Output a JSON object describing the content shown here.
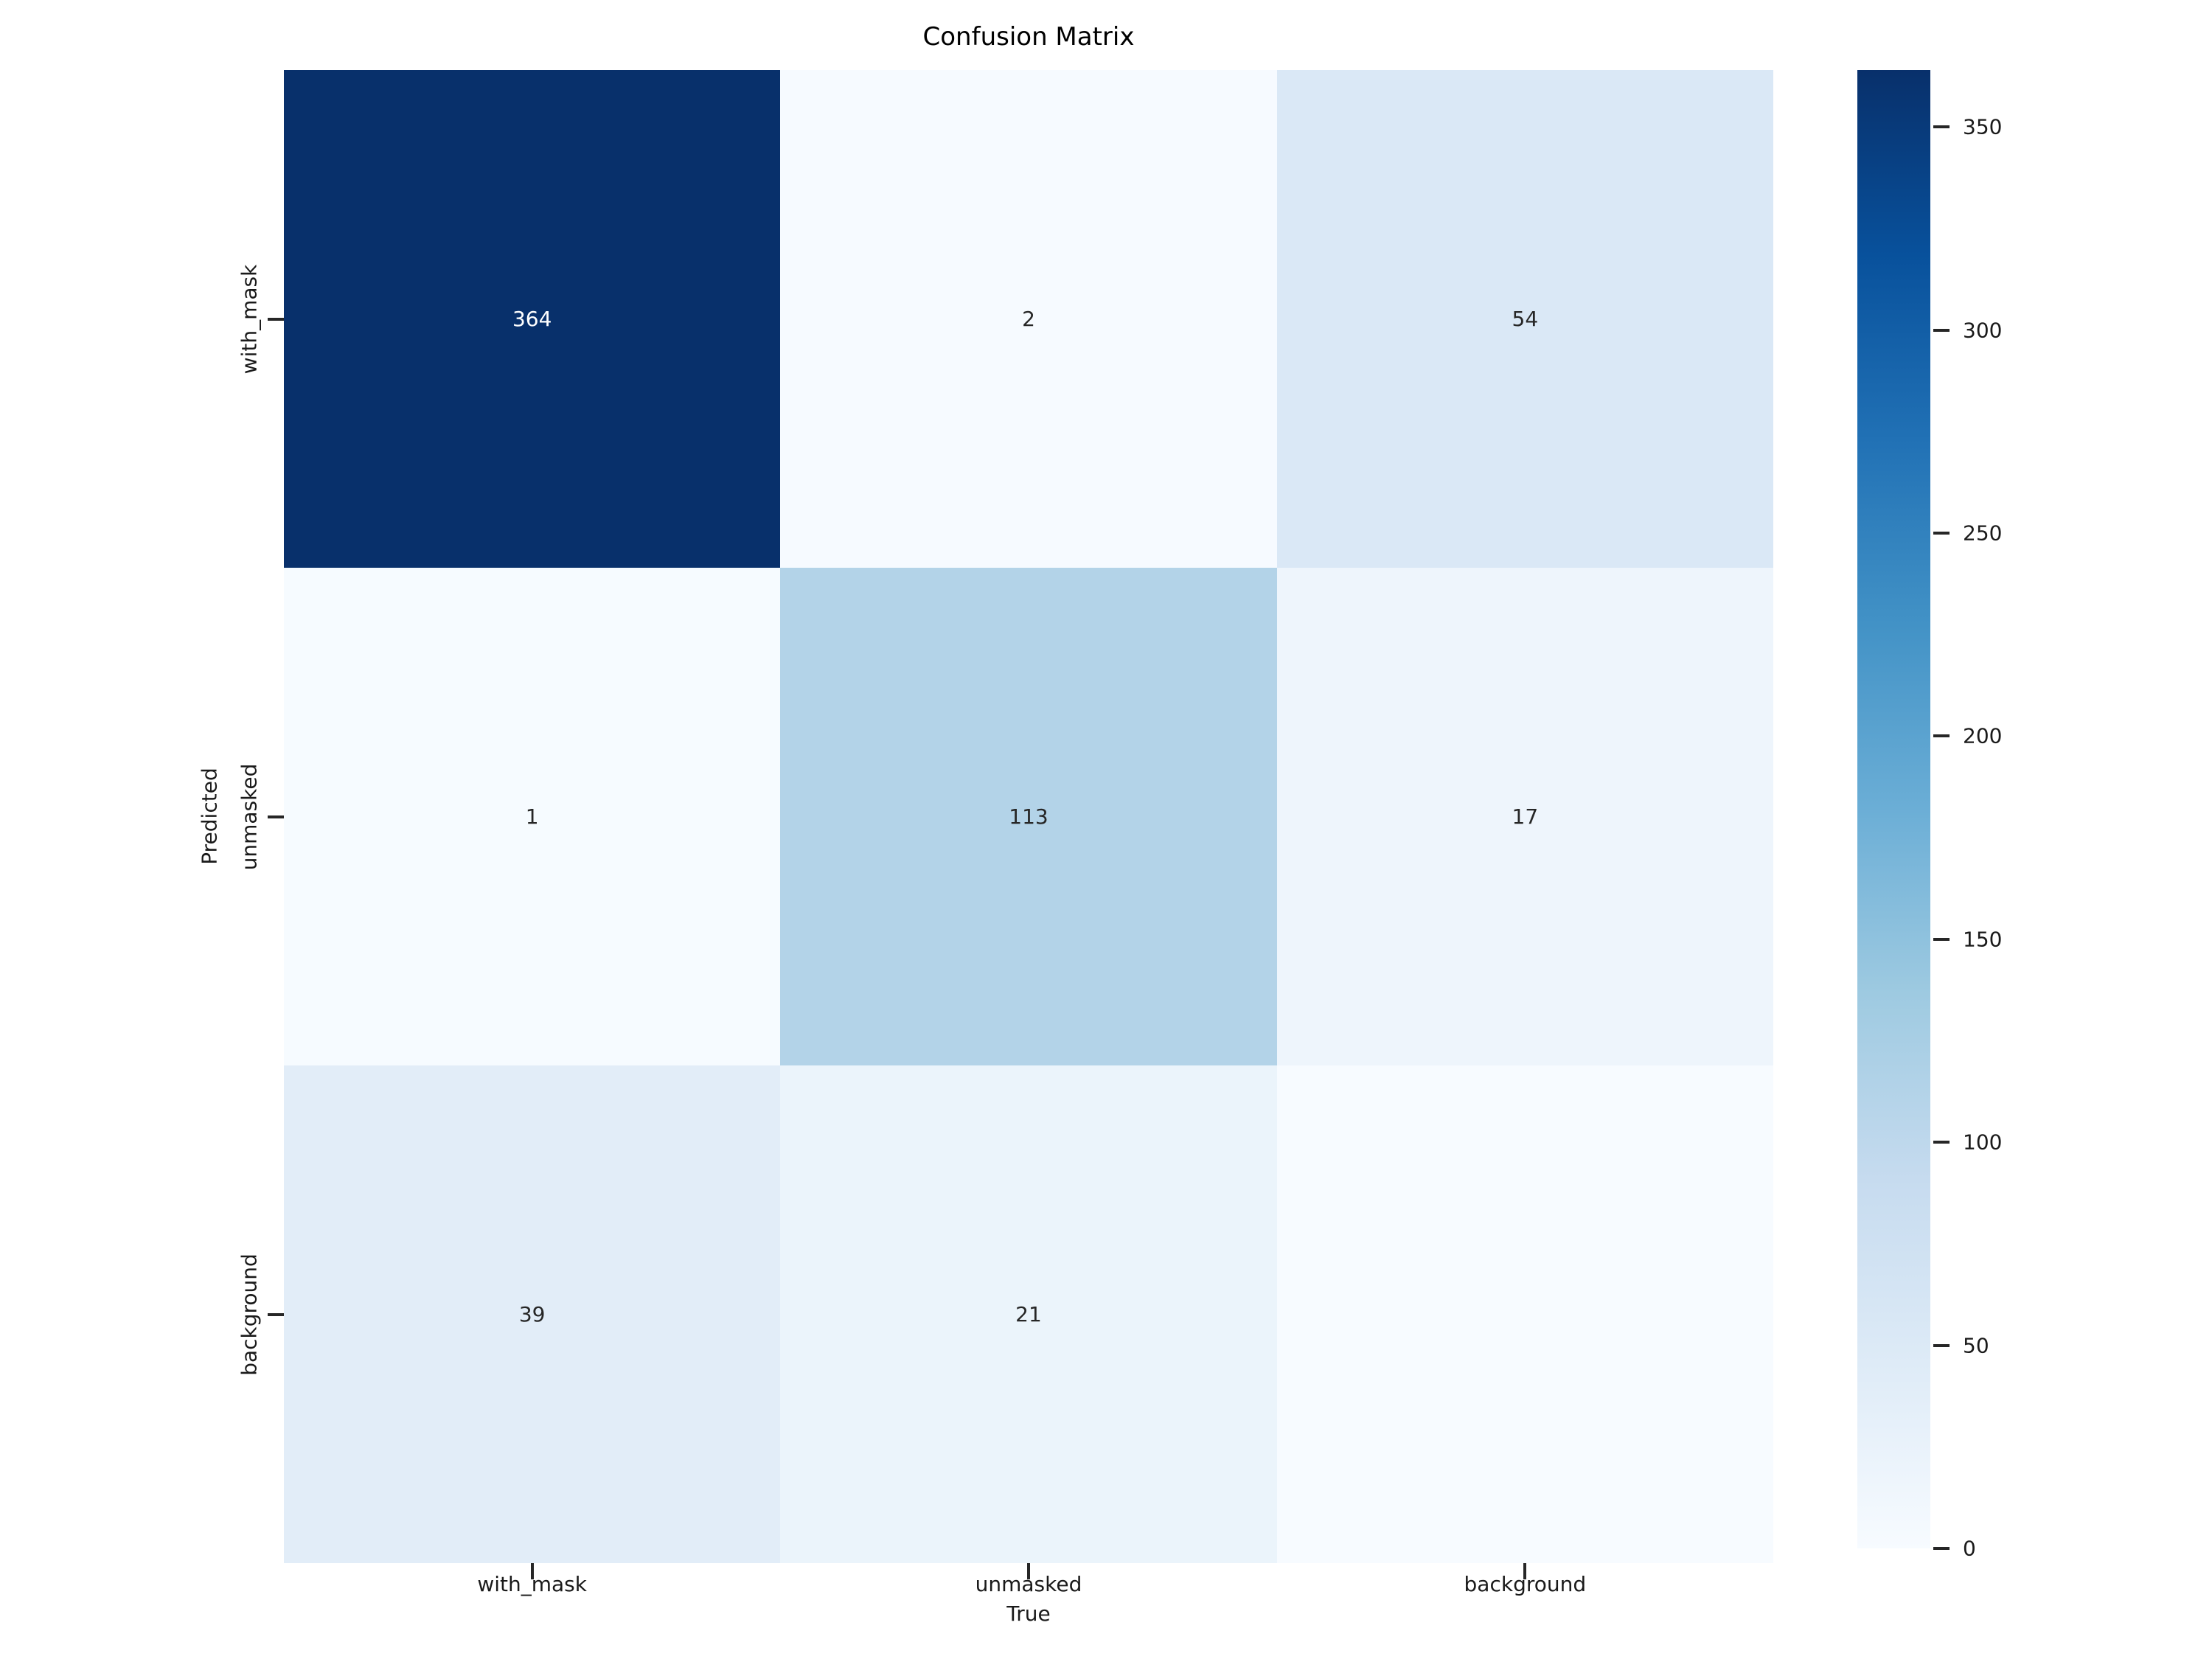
{
  "figure": {
    "title": "Confusion Matrix",
    "xlabel": "True",
    "ylabel": "Predicted"
  },
  "chart_data": {
    "type": "heatmap",
    "title": "Confusion Matrix",
    "xlabel": "True",
    "ylabel": "Predicted",
    "x_categories": [
      "with_mask",
      "unmasked",
      "background"
    ],
    "y_categories": [
      "with_mask",
      "unmasked",
      "background"
    ],
    "matrix": [
      [
        364,
        2,
        54
      ],
      [
        1,
        113,
        17
      ],
      [
        39,
        21,
        0
      ]
    ],
    "annotations": [
      [
        "364",
        "2",
        "54"
      ],
      [
        "1",
        "113",
        "17"
      ],
      [
        "39",
        "21",
        ""
      ]
    ],
    "vmin": 0,
    "vmax": 364,
    "colormap": "Blues",
    "colorbar_ticks": [
      0,
      50,
      100,
      150,
      200,
      250,
      300,
      350
    ],
    "grid": false,
    "legend": false
  },
  "colors": {
    "background": "#ffffff",
    "tick_text": "#1a1a1a",
    "annotation_dark": "#262626",
    "annotation_light": "#ffffff",
    "max_cell": "#08306b",
    "min_cell": "#f7fbff",
    "blues_stops": [
      [
        0.0,
        "#f7fbff"
      ],
      [
        0.125,
        "#deebf7"
      ],
      [
        0.25,
        "#c6dbef"
      ],
      [
        0.375,
        "#9ecae1"
      ],
      [
        0.5,
        "#6baed6"
      ],
      [
        0.625,
        "#4292c6"
      ],
      [
        0.75,
        "#2171b5"
      ],
      [
        0.875,
        "#08519c"
      ],
      [
        1.0,
        "#08306b"
      ]
    ]
  }
}
